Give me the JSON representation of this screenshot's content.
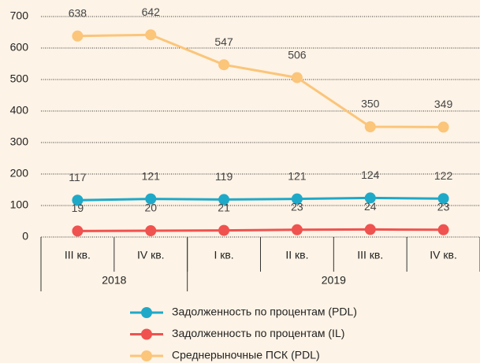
{
  "chart_data": {
    "type": "line",
    "categories": [
      "III кв.",
      "IV кв.",
      "I кв.",
      "II кв.",
      "III кв.",
      "IV кв."
    ],
    "groups": [
      {
        "label": "2018",
        "count": 2
      },
      {
        "label": "2019",
        "count": 4
      }
    ],
    "series": [
      {
        "name": "Задолженность по процентам (PDL)",
        "color": "#1fa9c8",
        "values": [
          117,
          121,
          119,
          121,
          124,
          122
        ]
      },
      {
        "name": "Задолженность по процентам (IL)",
        "color": "#f0524f",
        "values": [
          19,
          20,
          21,
          23,
          24,
          23
        ]
      },
      {
        "name": "Среднерыночные ПСК (PDL)",
        "color": "#fbc57a",
        "values": [
          638,
          642,
          547,
          506,
          350,
          349
        ]
      }
    ],
    "ylim": [
      0,
      700
    ],
    "yticks": [
      0,
      100,
      200,
      300,
      400,
      500,
      600,
      700
    ],
    "grid": true,
    "data_labels": true
  }
}
